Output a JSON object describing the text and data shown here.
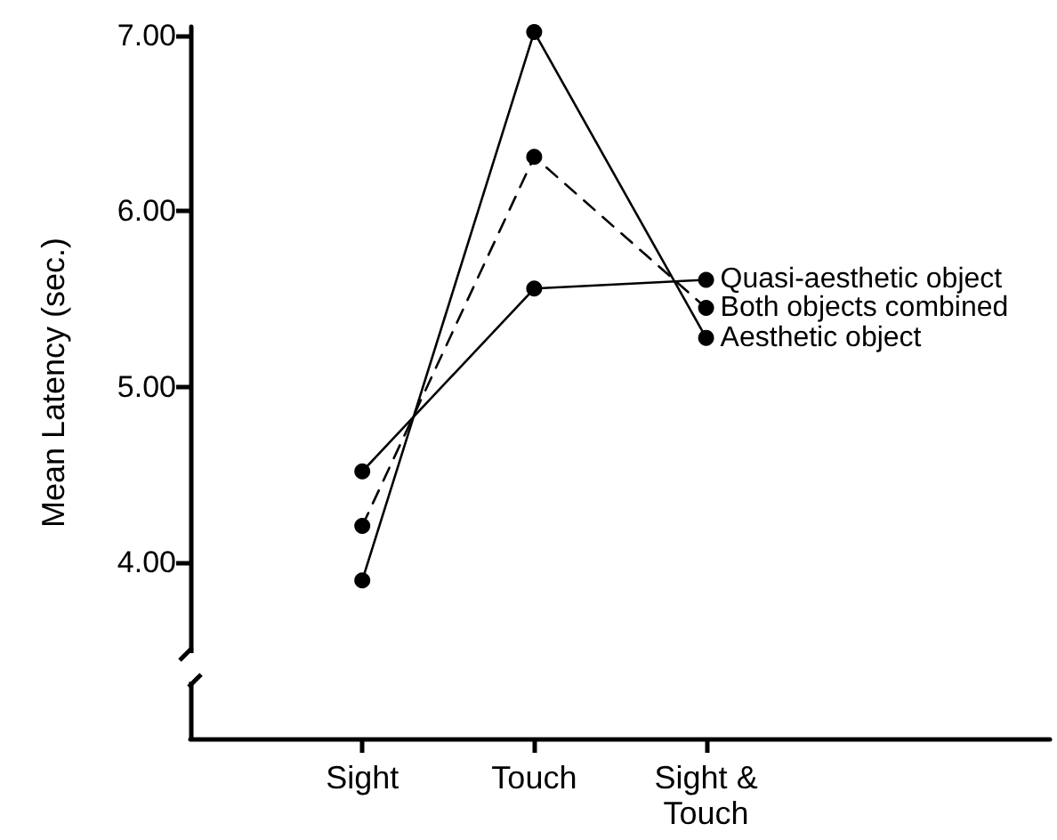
{
  "chart_data": {
    "type": "line",
    "ylabel": "Mean Latency (sec.)",
    "categories": [
      "Sight",
      "Touch",
      "Sight &\nTouch"
    ],
    "series": [
      {
        "name": "Quasi-aesthetic object",
        "color": "#000000",
        "line_style": "solid",
        "values": [
          4.52,
          5.56,
          5.61
        ]
      },
      {
        "name": "Both objects combined",
        "color": "#000000",
        "line_style": "dashed",
        "values": [
          4.21,
          6.31,
          5.45
        ]
      },
      {
        "name": "Aesthetic object",
        "color": "#000000",
        "line_style": "solid",
        "values": [
          3.9,
          7.02,
          5.28
        ]
      }
    ],
    "ylim": [
      3.0,
      7.05
    ],
    "yticks": [
      {
        "value": 4,
        "label": "4.00"
      },
      {
        "value": 5,
        "label": "5.00"
      },
      {
        "value": 6,
        "label": "6.00"
      },
      {
        "value": 7,
        "label": "7.00"
      }
    ],
    "marker": "circle",
    "legend": false,
    "grid": false
  }
}
